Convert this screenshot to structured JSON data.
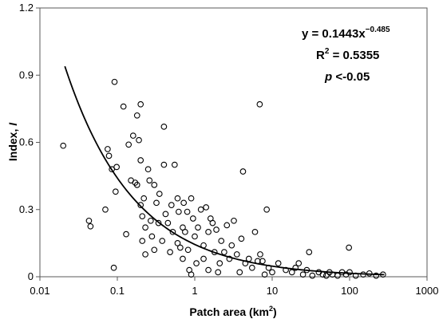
{
  "chart_data": {
    "type": "scatter",
    "xscale": "log",
    "xlim": [
      0.01,
      1000
    ],
    "ylim": [
      0,
      1.2
    ],
    "xticks": [
      0.01,
      0.1,
      1,
      10,
      100,
      1000
    ],
    "xtick_labels": [
      "0.01",
      "0.1",
      "1",
      "10",
      "100",
      "1000"
    ],
    "yticks": [
      0,
      0.3,
      0.6,
      0.9,
      1.2
    ],
    "ytick_labels": [
      "0",
      "0.3",
      "0.6",
      "0.9",
      "1.2"
    ],
    "xlabel_base": "Patch area (km",
    "xlabel_sup": "2",
    "xlabel_end": ")",
    "ylabel_base": "Index, ",
    "ylabel_italic": "I",
    "annotations": {
      "eq_base": "y = 0.1443x",
      "eq_exp": "−0.485",
      "r2_base": "R",
      "r2_sup": "2",
      "r2_rest": " = 0.5355",
      "p_italic": "p",
      "p_rest": " <-0.05"
    },
    "fit": {
      "a": 0.1443,
      "b": -0.485,
      "x_range": [
        0.021,
        280
      ]
    },
    "grid": false,
    "marker": "open-circle",
    "points": [
      [
        0.02,
        0.585
      ],
      [
        0.043,
        0.25
      ],
      [
        0.045,
        0.225
      ],
      [
        0.07,
        0.3
      ],
      [
        0.075,
        0.57
      ],
      [
        0.078,
        0.54
      ],
      [
        0.085,
        0.48
      ],
      [
        0.09,
        0.04
      ],
      [
        0.092,
        0.87
      ],
      [
        0.095,
        0.38
      ],
      [
        0.098,
        0.49
      ],
      [
        0.12,
        0.76
      ],
      [
        0.13,
        0.19
      ],
      [
        0.14,
        0.59
      ],
      [
        0.15,
        0.43
      ],
      [
        0.16,
        0.63
      ],
      [
        0.17,
        0.42
      ],
      [
        0.18,
        0.41
      ],
      [
        0.18,
        0.72
      ],
      [
        0.19,
        0.61
      ],
      [
        0.2,
        0.77
      ],
      [
        0.2,
        0.52
      ],
      [
        0.2,
        0.32
      ],
      [
        0.21,
        0.27
      ],
      [
        0.22,
        0.35
      ],
      [
        0.21,
        0.16
      ],
      [
        0.23,
        0.22
      ],
      [
        0.23,
        0.1
      ],
      [
        0.25,
        0.48
      ],
      [
        0.26,
        0.43
      ],
      [
        0.27,
        0.25
      ],
      [
        0.28,
        0.18
      ],
      [
        0.3,
        0.12
      ],
      [
        0.3,
        0.41
      ],
      [
        0.32,
        0.33
      ],
      [
        0.34,
        0.24
      ],
      [
        0.35,
        0.37
      ],
      [
        0.38,
        0.16
      ],
      [
        0.4,
        0.67
      ],
      [
        0.4,
        0.5
      ],
      [
        0.42,
        0.28
      ],
      [
        0.45,
        0.24
      ],
      [
        0.48,
        0.11
      ],
      [
        0.5,
        0.32
      ],
      [
        0.52,
        0.2
      ],
      [
        0.55,
        0.5
      ],
      [
        0.6,
        0.35
      ],
      [
        0.6,
        0.15
      ],
      [
        0.62,
        0.29
      ],
      [
        0.65,
        0.13
      ],
      [
        0.7,
        0.08
      ],
      [
        0.7,
        0.22
      ],
      [
        0.72,
        0.33
      ],
      [
        0.75,
        0.2
      ],
      [
        0.8,
        0.29
      ],
      [
        0.82,
        0.12
      ],
      [
        0.85,
        0.03
      ],
      [
        0.9,
        0.35
      ],
      [
        0.9,
        0.01
      ],
      [
        0.95,
        0.26
      ],
      [
        1.0,
        0.18
      ],
      [
        1.05,
        0.06
      ],
      [
        1.1,
        0.22
      ],
      [
        1.2,
        0.3
      ],
      [
        1.3,
        0.14
      ],
      [
        1.3,
        0.08
      ],
      [
        1.4,
        0.31
      ],
      [
        1.5,
        0.2
      ],
      [
        1.5,
        0.03
      ],
      [
        1.6,
        0.26
      ],
      [
        1.7,
        0.24
      ],
      [
        1.8,
        0.11
      ],
      [
        1.9,
        0.21
      ],
      [
        2.0,
        0.02
      ],
      [
        2.1,
        0.06
      ],
      [
        2.2,
        0.16
      ],
      [
        2.4,
        0.11
      ],
      [
        2.6,
        0.23
      ],
      [
        2.8,
        0.08
      ],
      [
        3.0,
        0.14
      ],
      [
        3.2,
        0.25
      ],
      [
        3.5,
        0.1
      ],
      [
        3.8,
        0.02
      ],
      [
        4.0,
        0.17
      ],
      [
        4.2,
        0.47
      ],
      [
        4.5,
        0.06
      ],
      [
        5.0,
        0.08
      ],
      [
        5.5,
        0.04
      ],
      [
        6.0,
        0.2
      ],
      [
        6.5,
        0.07
      ],
      [
        6.9,
        0.77
      ],
      [
        7.0,
        0.1
      ],
      [
        7.5,
        0.07
      ],
      [
        8.0,
        0.01
      ],
      [
        8.5,
        0.3
      ],
      [
        9.0,
        0.04
      ],
      [
        10.0,
        0.02
      ],
      [
        12.0,
        0.06
      ],
      [
        15.0,
        0.03
      ],
      [
        18.0,
        0.02
      ],
      [
        20.0,
        0.04
      ],
      [
        22.0,
        0.06
      ],
      [
        25.0,
        0.01
      ],
      [
        28.0,
        0.03
      ],
      [
        30.0,
        0.11
      ],
      [
        33.0,
        0.005
      ],
      [
        40.0,
        0.02
      ],
      [
        45.0,
        0.01
      ],
      [
        50.0,
        0.005
      ],
      [
        55.0,
        0.02
      ],
      [
        60.0,
        0.01
      ],
      [
        70.0,
        0.005
      ],
      [
        80.0,
        0.02
      ],
      [
        90.0,
        0.01
      ],
      [
        98.0,
        0.13
      ],
      [
        100.0,
        0.02
      ],
      [
        120.0,
        0.005
      ],
      [
        150.0,
        0.01
      ],
      [
        180.0,
        0.015
      ],
      [
        220.0,
        0.005
      ],
      [
        270.0,
        0.01
      ]
    ]
  }
}
